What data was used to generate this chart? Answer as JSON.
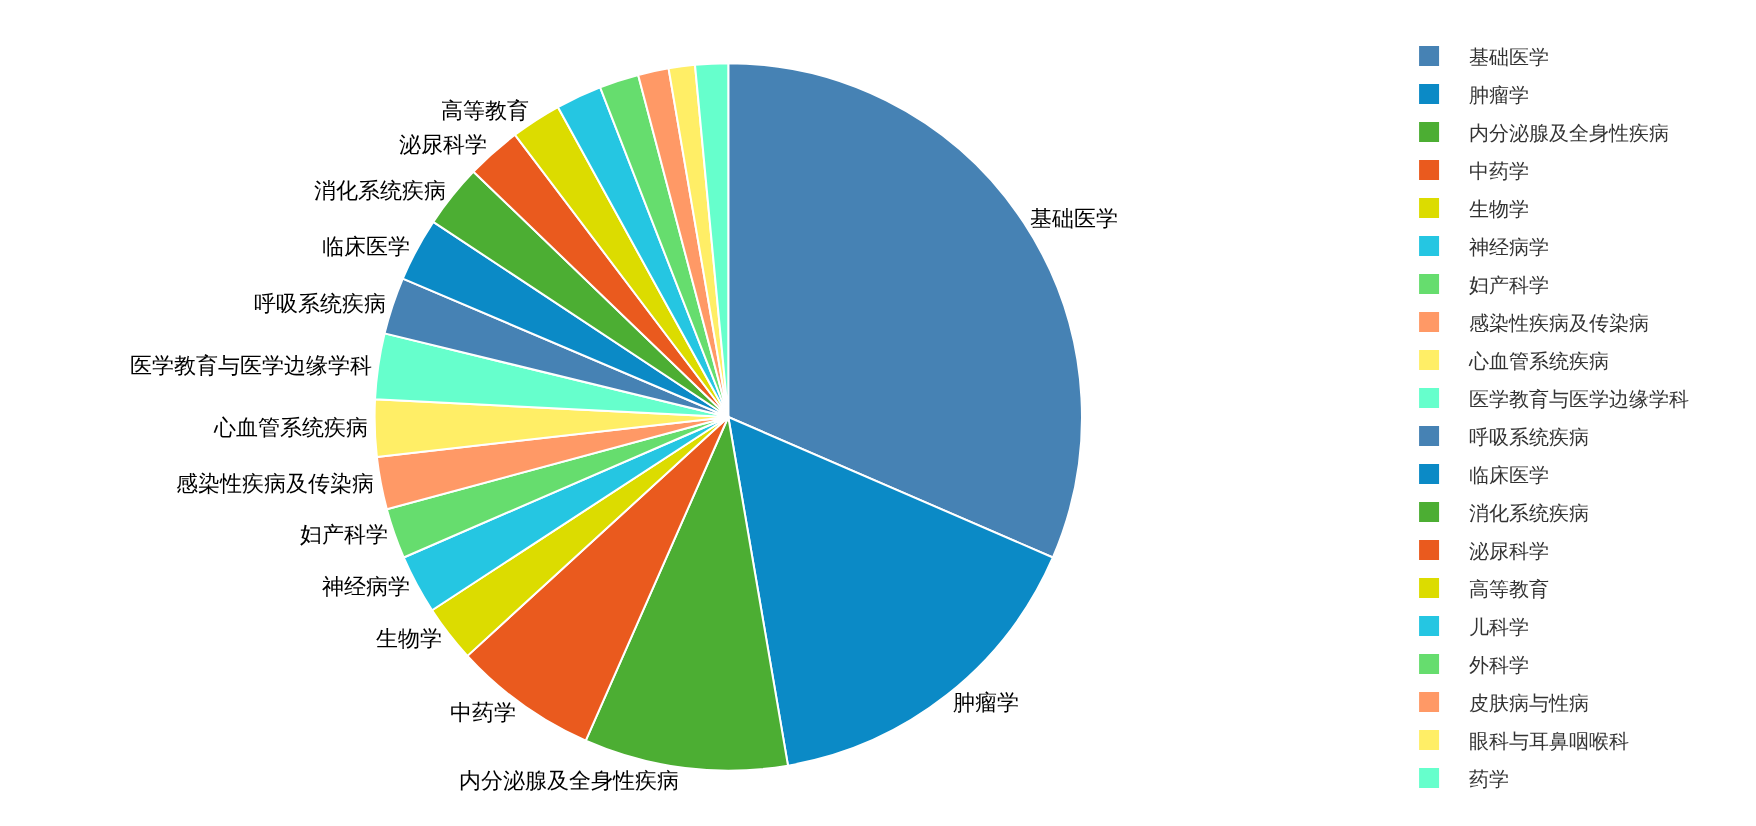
{
  "chart_data": {
    "type": "pie",
    "categories": [
      "基础医学",
      "肿瘤学",
      "内分泌腺及全身性疾病",
      "中药学",
      "生物学",
      "神经病学",
      "妇产科学",
      "感染性疾病及传染病",
      "心血管系统疾病",
      "医学教育与医学边缘学科",
      "呼吸系统疾病",
      "临床医学",
      "消化系统疾病",
      "泌尿科学",
      "高等教育",
      "儿科学",
      "外科学",
      "皮肤病与性病",
      "眼科与耳鼻咽喉科",
      "药学"
    ],
    "values": [
      31.5,
      15.8,
      9.3,
      6.6,
      2.6,
      2.7,
      2.3,
      2.4,
      2.6,
      3.0,
      2.6,
      2.9,
      2.9,
      2.5,
      2.3,
      2.1,
      1.8,
      1.4,
      1.2,
      1.5
    ],
    "colors": [
      "#4682b4",
      "#0b8ac6",
      "#4cae33",
      "#ea5a1e",
      "#dcdc00",
      "#25c6e2",
      "#66dd6e",
      "#ff9966",
      "#ffee66",
      "#66ffcc",
      "#4682b4",
      "#0b8ac6",
      "#4cae33",
      "#ea5a1e",
      "#dcdc00",
      "#25c6e2",
      "#66dd6e",
      "#ff9966",
      "#ffee66",
      "#66ffcc"
    ],
    "value_labels": [
      "基础医学",
      "肿瘤学",
      "内分泌腺及全身性疾病",
      "中药学",
      "生物学",
      "神经病学",
      "妇产科学",
      "感染性疾病及传染病",
      "心血管系统疾病",
      "医学教育与医学边缘学科",
      "呼吸系统疾病",
      "临床医学",
      "消化系统疾病",
      "泌尿科学",
      "高等教育",
      null,
      null,
      null,
      null,
      null
    ],
    "legend": "right"
  }
}
